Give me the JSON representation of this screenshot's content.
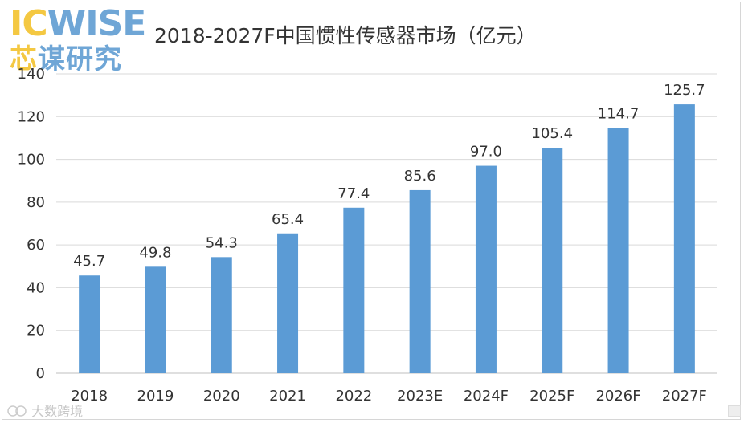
{
  "logo": {
    "ic": "IC",
    "wise": "WISE",
    "cn_first": "芯",
    "cn_rest": "谋研究"
  },
  "watermark": "大数跨境",
  "colors": {
    "bar": "#5b9bd5",
    "grid": "#d9d9d9",
    "text": "#333333"
  },
  "chart_data": {
    "type": "bar",
    "title": "2018-2027F中国惯性传感器市场（亿元）",
    "xlabel": "",
    "ylabel": "",
    "categories": [
      "2018",
      "2019",
      "2020",
      "2021",
      "2022",
      "2023E",
      "2024F",
      "2025F",
      "2026F",
      "2027F"
    ],
    "values": [
      45.7,
      49.8,
      54.3,
      65.4,
      77.4,
      85.6,
      97.0,
      105.4,
      114.7,
      125.7
    ],
    "value_labels": [
      "45.7",
      "49.8",
      "54.3",
      "65.4",
      "77.4",
      "85.6",
      "97.0",
      "105.4",
      "114.7",
      "125.7"
    ],
    "ylim": [
      0,
      140
    ],
    "yticks": [
      0,
      20,
      40,
      60,
      80,
      100,
      120,
      140
    ],
    "grid": true
  }
}
